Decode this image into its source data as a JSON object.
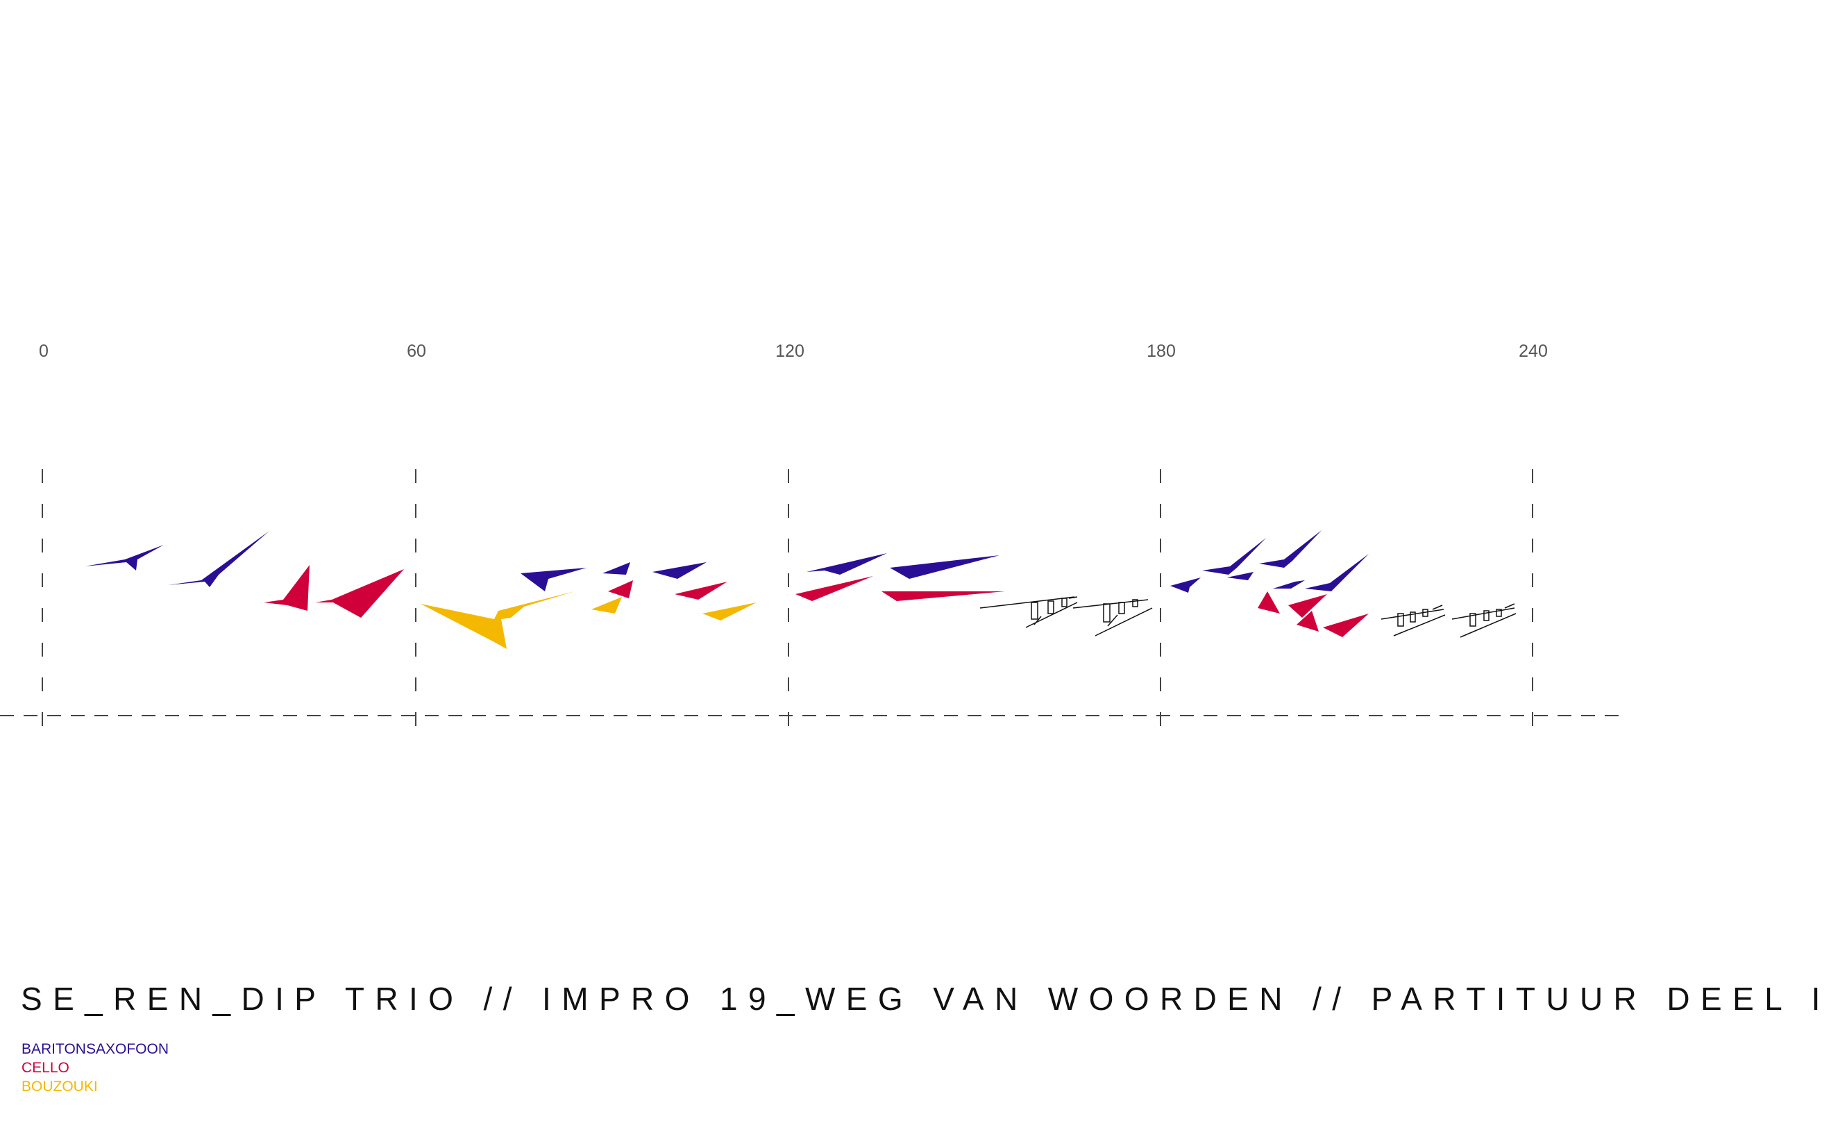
{
  "timeline": {
    "tick_labels": [
      "0",
      "60",
      "120",
      "180",
      "240"
    ]
  },
  "title": "SE_REN_DIP TRIO // IMPRO 19_WEG VAN WOORDEN // PARTITUUR DEEL I",
  "legend": {
    "items": [
      {
        "name": "BARITONSAXOFOON",
        "color": "#2a0f96"
      },
      {
        "name": "CELLO",
        "color": "#d0003b"
      },
      {
        "name": "BOUZOUKI",
        "color": "#f4b800"
      }
    ]
  }
}
